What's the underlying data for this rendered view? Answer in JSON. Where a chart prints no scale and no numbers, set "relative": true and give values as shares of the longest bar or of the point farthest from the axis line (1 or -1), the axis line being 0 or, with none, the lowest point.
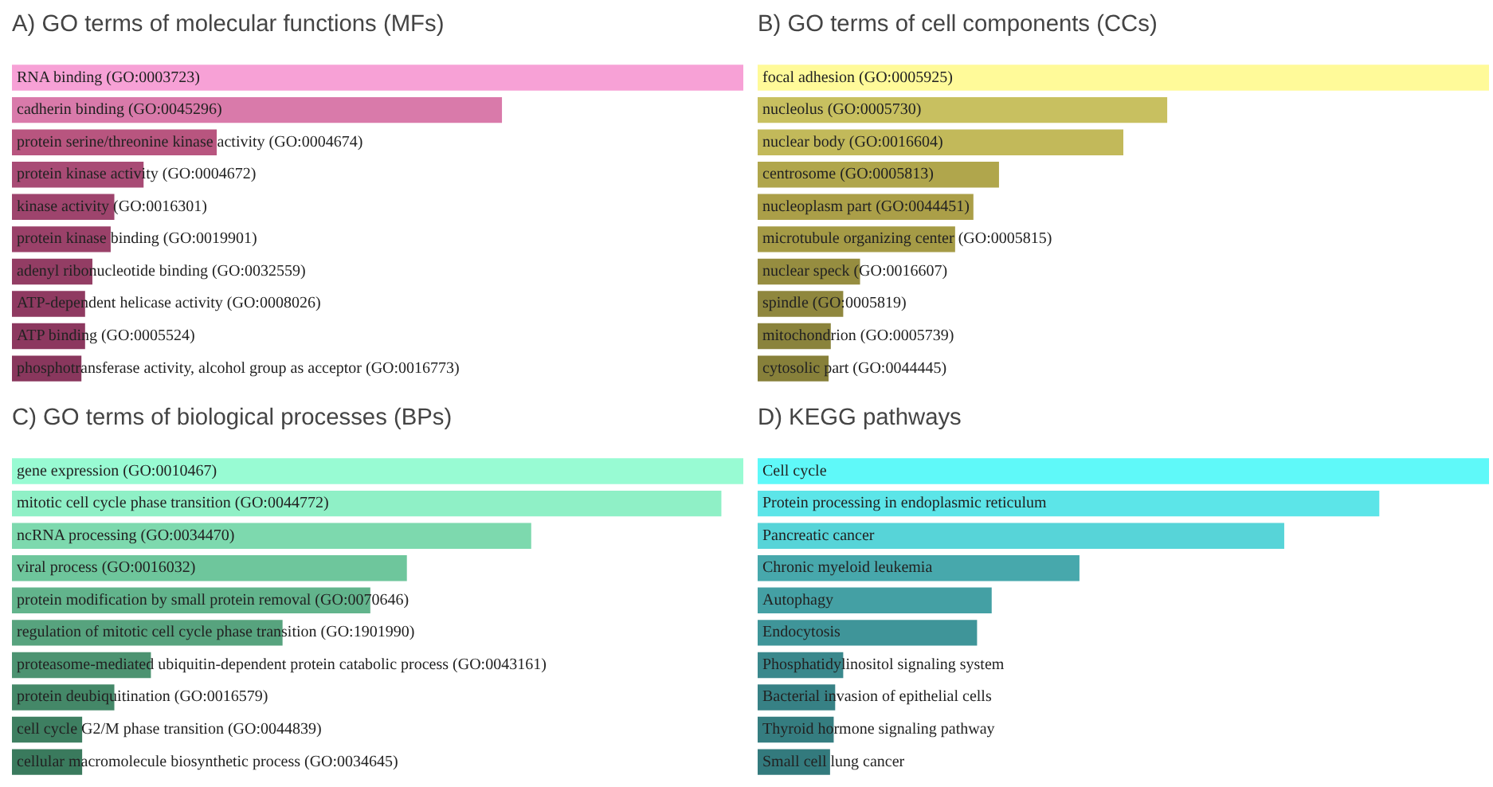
{
  "chart_data": [
    {
      "type": "bar",
      "orientation": "horizontal",
      "relative": true,
      "title": "A) GO terms of molecular functions (MFs)",
      "categories": [
        "RNA binding (GO:0003723)",
        "cadherin binding (GO:0045296)",
        "protein serine/threonine kinase activity (GO:0004674)",
        "protein kinase activity (GO:0004672)",
        "kinase activity (GO:0016301)",
        "protein kinase binding (GO:0019901)",
        "adenyl ribonucleotide binding (GO:0032559)",
        "ATP-dependent helicase activity (GO:0008026)",
        "ATP binding (GO:0005524)",
        "phosphotransferase activity, alcohol group as acceptor (GO:0016773)"
      ],
      "values": [
        1.0,
        0.67,
        0.28,
        0.18,
        0.14,
        0.135,
        0.11,
        0.1,
        0.1,
        0.095
      ],
      "colors": [
        "#f7a1d6",
        "#d97aaa",
        "#b8557f",
        "#a84b75",
        "#9e446d",
        "#9a4169",
        "#933d64",
        "#8f3a61",
        "#8c385f",
        "#89375d"
      ]
    },
    {
      "type": "bar",
      "orientation": "horizontal",
      "relative": true,
      "title": "B) GO terms of cell components (CCs)",
      "categories": [
        "focal adhesion (GO:0005925)",
        "nucleolus (GO:0005730)",
        "nuclear body (GO:0016604)",
        "centrosome (GO:0005813)",
        "nucleoplasm part (GO:0044451)",
        "microtubule organizing center (GO:0005815)",
        "nuclear speck (GO:0016607)",
        "spindle (GO:0005819)",
        "mitochondrion (GO:0005739)",
        "cytosolic part (GO:0044445)"
      ],
      "values": [
        1.0,
        0.56,
        0.5,
        0.33,
        0.295,
        0.27,
        0.14,
        0.117,
        0.1,
        0.097
      ],
      "colors": [
        "#fffa99",
        "#c8c060",
        "#c2b95a",
        "#b0a64c",
        "#ab9f48",
        "#a59b46",
        "#968d40",
        "#8f873e",
        "#8a833c",
        "#87803a"
      ]
    },
    {
      "type": "bar",
      "orientation": "horizontal",
      "relative": true,
      "title": "C) GO terms of biological processes (BPs)",
      "categories": [
        "gene expression (GO:0010467)",
        "mitotic cell cycle phase transition (GO:0044772)",
        "ncRNA processing (GO:0034470)",
        "viral process (GO:0016032)",
        "protein modification by small protein removal (GO:0070646)",
        "regulation of mitotic cell cycle phase transition (GO:1901990)",
        "proteasome-mediated ubiquitin-dependent protein catabolic process (GO:0043161)",
        "protein deubiquitination (GO:0016579)",
        "cell cycle G2/M phase transition (GO:0044839)",
        "cellular macromolecule biosynthetic process (GO:0034645)"
      ],
      "values": [
        1.0,
        0.97,
        0.71,
        0.54,
        0.49,
        0.37,
        0.19,
        0.14,
        0.096,
        0.096
      ],
      "colors": [
        "#98fbd3",
        "#8ff0c6",
        "#7dd9ae",
        "#6ec69c",
        "#62b48c",
        "#57a37e",
        "#4c9371",
        "#448868",
        "#3e7f61",
        "#3a7a5d"
      ]
    },
    {
      "type": "bar",
      "orientation": "horizontal",
      "relative": true,
      "title": "D) KEGG pathways",
      "categories": [
        "Cell cycle",
        "Protein processing in endoplasmic reticulum",
        "Pancreatic cancer",
        "Chronic myeloid leukemia",
        "Autophagy",
        "Endocytosis",
        "Phosphatidylinositol signaling system",
        "Bacterial invasion of epithelial cells",
        "Thyroid hormone signaling pathway",
        "Small cell lung cancer"
      ],
      "values": [
        1.0,
        0.85,
        0.72,
        0.44,
        0.32,
        0.3,
        0.117,
        0.106,
        0.104,
        0.099
      ],
      "colors": [
        "#5ff9f9",
        "#5ce5e8",
        "#57d4d8",
        "#47a8ac",
        "#44a0a4",
        "#3f9599",
        "#3a888c",
        "#378185",
        "#357d80",
        "#337a7d"
      ]
    }
  ]
}
